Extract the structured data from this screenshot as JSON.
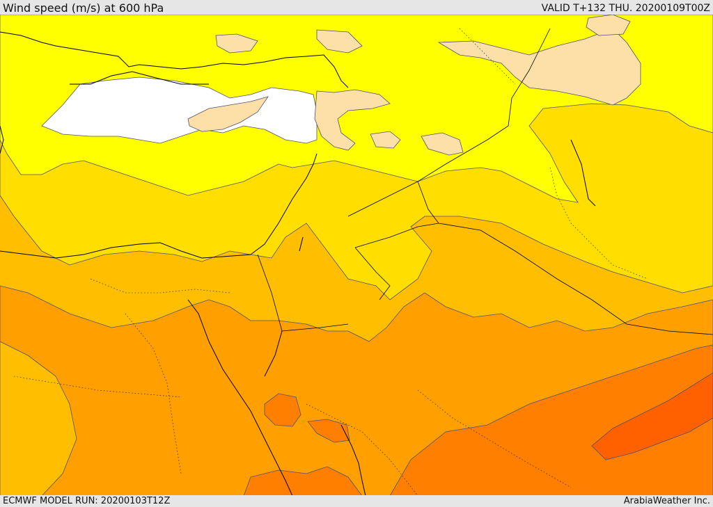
{
  "header": {
    "title": "Wind speed (m/s) at 600 hPa",
    "valid": "VALID T+132 THU. 20200109T00Z"
  },
  "footer": {
    "model_run": "ECMWF MODEL RUN: 20200103T12Z",
    "credit": "ArabiaWeather Inc."
  },
  "map": {
    "field": "wind speed at 600 hPa",
    "fill_colors": {
      "white_band": "#ffffff",
      "beige_band": "#fde0a8",
      "yellow_band": "#ffff00",
      "gold_band": "#ffde00",
      "light_orange_band": "#ffbf00",
      "orange_band": "#ff9f00",
      "dark_orange_band": "#ff8000",
      "red_orange_band": "#ff6000"
    },
    "coastline_color": "#000000",
    "contour_color": "#505070"
  }
}
